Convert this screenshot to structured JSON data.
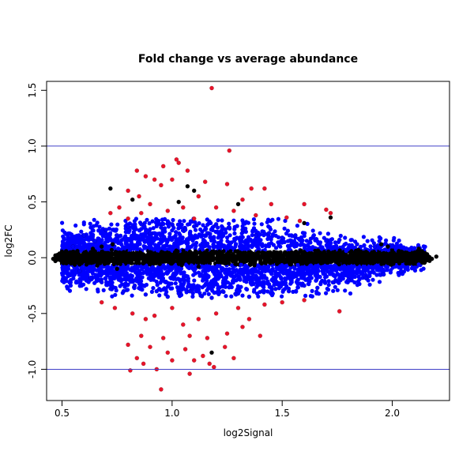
{
  "chart_data": {
    "type": "scatter",
    "title": "Fold change vs average abundance",
    "xlabel": "log2Signal",
    "ylabel": "log2FC",
    "xlim": [
      0.43,
      2.26
    ],
    "ylim": [
      -1.28,
      1.58
    ],
    "x_ticks": [
      0.5,
      1.0,
      1.5,
      2.0
    ],
    "x_tick_labels": [
      "0.5",
      "1.0",
      "1.5",
      "2.0"
    ],
    "y_ticks": [
      -1.0,
      -0.5,
      0.0,
      0.5,
      1.0,
      1.5
    ],
    "y_tick_labels": [
      "-1.0",
      "-0.5",
      "0.0",
      "0.5",
      "1.0",
      "1.5"
    ],
    "grid": false,
    "legend": "none",
    "reference_lines": [
      {
        "axis": "y",
        "value": 1.0,
        "color": "#4040c8"
      },
      {
        "axis": "y",
        "value": -1.0,
        "color": "#4040c8"
      }
    ],
    "colors": {
      "black": "#000000",
      "blue": "#0000ff",
      "red": "#e8142a"
    },
    "series": [
      {
        "color": "black",
        "points": [
          [
            0.46,
            -0.01
          ],
          [
            0.47,
            0.02
          ],
          [
            0.47,
            -0.03
          ],
          [
            0.48,
            0.01
          ],
          [
            0.49,
            -0.02
          ],
          [
            0.5,
            0.03
          ],
          [
            0.5,
            -0.04
          ],
          [
            0.51,
            0.0
          ],
          [
            0.52,
            0.05
          ],
          [
            0.52,
            -0.05
          ],
          [
            0.54,
            0.02
          ],
          [
            0.55,
            -0.02
          ],
          [
            0.57,
            0.06
          ],
          [
            0.58,
            -0.06
          ],
          [
            0.6,
            0.04
          ],
          [
            0.62,
            -0.03
          ],
          [
            0.64,
            0.08
          ],
          [
            0.66,
            -0.07
          ],
          [
            0.68,
            0.1
          ],
          [
            0.7,
            0.0
          ],
          [
            0.72,
            0.62
          ],
          [
            0.73,
            0.12
          ],
          [
            0.75,
            -0.1
          ],
          [
            0.78,
            0.05
          ],
          [
            0.8,
            -0.04
          ],
          [
            0.82,
            0.52
          ],
          [
            0.85,
            0.03
          ],
          [
            0.88,
            -0.02
          ],
          [
            0.9,
            0.05
          ],
          [
            0.93,
            0.01
          ],
          [
            0.96,
            0.04
          ],
          [
            1.0,
            0.02
          ],
          [
            1.03,
            0.5
          ],
          [
            1.07,
            0.64
          ],
          [
            1.1,
            0.6
          ],
          [
            1.12,
            -0.08
          ],
          [
            1.14,
            0.03
          ],
          [
            1.18,
            -0.85
          ],
          [
            1.2,
            0.05
          ],
          [
            1.24,
            0.02
          ],
          [
            1.28,
            -0.03
          ],
          [
            1.3,
            0.48
          ],
          [
            1.33,
            0.03
          ],
          [
            1.38,
            -0.02
          ],
          [
            1.42,
            0.04
          ],
          [
            1.46,
            -0.03
          ],
          [
            1.5,
            0.02
          ],
          [
            1.54,
            -0.06
          ],
          [
            1.58,
            0.05
          ],
          [
            1.6,
            0.31
          ],
          [
            1.62,
            -0.04
          ],
          [
            1.66,
            0.03
          ],
          [
            1.7,
            -0.02
          ],
          [
            1.72,
            0.36
          ],
          [
            1.75,
            0.01
          ],
          [
            1.8,
            -0.03
          ],
          [
            1.85,
            0.02
          ],
          [
            1.9,
            -0.04
          ],
          [
            1.95,
            0.12
          ],
          [
            1.98,
            0.1
          ],
          [
            2.0,
            -0.02
          ],
          [
            2.03,
            0.06
          ],
          [
            2.06,
            0.02
          ],
          [
            2.08,
            -0.05
          ],
          [
            2.1,
            0.04
          ],
          [
            2.12,
            0.08
          ],
          [
            2.14,
            -0.03
          ],
          [
            2.16,
            0.02
          ],
          [
            2.18,
            -0.01
          ],
          [
            2.2,
            0.01
          ]
        ]
      },
      {
        "color": "blue",
        "points": [
          [
            0.55,
            0.1
          ],
          [
            0.58,
            -0.12
          ],
          [
            0.6,
            0.2
          ],
          [
            0.63,
            -0.18
          ],
          [
            0.65,
            0.15
          ],
          [
            0.68,
            -0.22
          ],
          [
            0.7,
            0.25
          ],
          [
            0.72,
            -0.28
          ],
          [
            0.75,
            0.2
          ],
          [
            0.78,
            -0.3
          ],
          [
            0.8,
            0.28
          ],
          [
            0.83,
            -0.25
          ],
          [
            0.86,
            0.3
          ],
          [
            0.88,
            -0.33
          ],
          [
            0.9,
            0.22
          ],
          [
            0.93,
            -0.3
          ],
          [
            0.95,
            0.27
          ],
          [
            0.98,
            -0.35
          ],
          [
            1.0,
            0.3
          ],
          [
            1.03,
            -0.32
          ],
          [
            1.06,
            0.25
          ],
          [
            1.08,
            -0.3
          ],
          [
            1.1,
            0.28
          ],
          [
            1.13,
            -0.34
          ],
          [
            1.16,
            0.22
          ],
          [
            1.18,
            -0.36
          ],
          [
            1.2,
            0.3
          ],
          [
            1.23,
            -0.3
          ],
          [
            1.26,
            0.27
          ],
          [
            1.29,
            -0.33
          ],
          [
            1.32,
            0.25
          ],
          [
            1.35,
            -0.35
          ],
          [
            1.38,
            0.2
          ],
          [
            1.41,
            -0.3
          ],
          [
            1.44,
            0.22
          ],
          [
            1.47,
            -0.28
          ],
          [
            1.5,
            0.18
          ],
          [
            1.53,
            -0.3
          ],
          [
            1.56,
            0.2
          ],
          [
            1.6,
            -0.25
          ],
          [
            1.63,
            0.17
          ],
          [
            1.66,
            -0.27
          ],
          [
            1.7,
            0.15
          ],
          [
            1.73,
            -0.22
          ],
          [
            1.76,
            0.16
          ],
          [
            1.8,
            -0.2
          ],
          [
            1.84,
            0.12
          ],
          [
            1.88,
            -0.18
          ],
          [
            1.92,
            0.1
          ],
          [
            1.96,
            -0.15
          ],
          [
            2.0,
            0.1
          ],
          [
            2.04,
            -0.12
          ],
          [
            2.08,
            0.07
          ],
          [
            2.12,
            -0.06
          ]
        ]
      },
      {
        "color": "red",
        "points": [
          [
            1.18,
            1.52
          ],
          [
            1.26,
            0.96
          ],
          [
            1.02,
            0.88
          ],
          [
            1.03,
            0.85
          ],
          [
            0.96,
            0.82
          ],
          [
            0.84,
            0.78
          ],
          [
            1.07,
            0.78
          ],
          [
            0.88,
            0.73
          ],
          [
            0.92,
            0.7
          ],
          [
            1.0,
            0.7
          ],
          [
            1.15,
            0.68
          ],
          [
            0.95,
            0.65
          ],
          [
            1.25,
            0.66
          ],
          [
            1.36,
            0.62
          ],
          [
            1.42,
            0.62
          ],
          [
            0.8,
            0.6
          ],
          [
            0.85,
            0.55
          ],
          [
            1.12,
            0.55
          ],
          [
            1.32,
            0.52
          ],
          [
            0.9,
            0.48
          ],
          [
            1.45,
            0.48
          ],
          [
            1.6,
            0.48
          ],
          [
            0.76,
            0.45
          ],
          [
            1.05,
            0.45
          ],
          [
            1.2,
            0.45
          ],
          [
            1.28,
            0.42
          ],
          [
            0.72,
            0.4
          ],
          [
            0.86,
            0.4
          ],
          [
            0.98,
            0.42
          ],
          [
            1.38,
            0.38
          ],
          [
            1.7,
            0.43
          ],
          [
            1.72,
            0.4
          ],
          [
            1.52,
            0.36
          ],
          [
            0.8,
            0.35
          ],
          [
            1.1,
            0.35
          ],
          [
            1.58,
            0.33
          ],
          [
            0.68,
            -0.4
          ],
          [
            0.74,
            -0.45
          ],
          [
            0.82,
            -0.5
          ],
          [
            0.88,
            -0.55
          ],
          [
            0.92,
            -0.52
          ],
          [
            1.0,
            -0.45
          ],
          [
            1.05,
            -0.6
          ],
          [
            1.12,
            -0.55
          ],
          [
            1.2,
            -0.5
          ],
          [
            1.3,
            -0.45
          ],
          [
            1.35,
            -0.55
          ],
          [
            1.42,
            -0.42
          ],
          [
            1.5,
            -0.4
          ],
          [
            1.6,
            -0.38
          ],
          [
            1.76,
            -0.48
          ],
          [
            0.86,
            -0.7
          ],
          [
            0.96,
            -0.72
          ],
          [
            1.08,
            -0.7
          ],
          [
            1.16,
            -0.72
          ],
          [
            1.25,
            -0.68
          ],
          [
            1.32,
            -0.62
          ],
          [
            1.4,
            -0.7
          ],
          [
            0.8,
            -0.78
          ],
          [
            0.9,
            -0.8
          ],
          [
            0.98,
            -0.85
          ],
          [
            1.06,
            -0.82
          ],
          [
            1.14,
            -0.88
          ],
          [
            1.24,
            -0.8
          ],
          [
            0.81,
            -1.01
          ],
          [
            0.87,
            -0.95
          ],
          [
            0.93,
            -1.0
          ],
          [
            1.0,
            -0.92
          ],
          [
            1.1,
            -0.92
          ],
          [
            1.17,
            -0.95
          ],
          [
            1.19,
            -0.98
          ],
          [
            0.95,
            -1.18
          ],
          [
            1.08,
            -1.04
          ],
          [
            1.28,
            -0.9
          ],
          [
            0.84,
            -0.9
          ]
        ]
      }
    ]
  }
}
